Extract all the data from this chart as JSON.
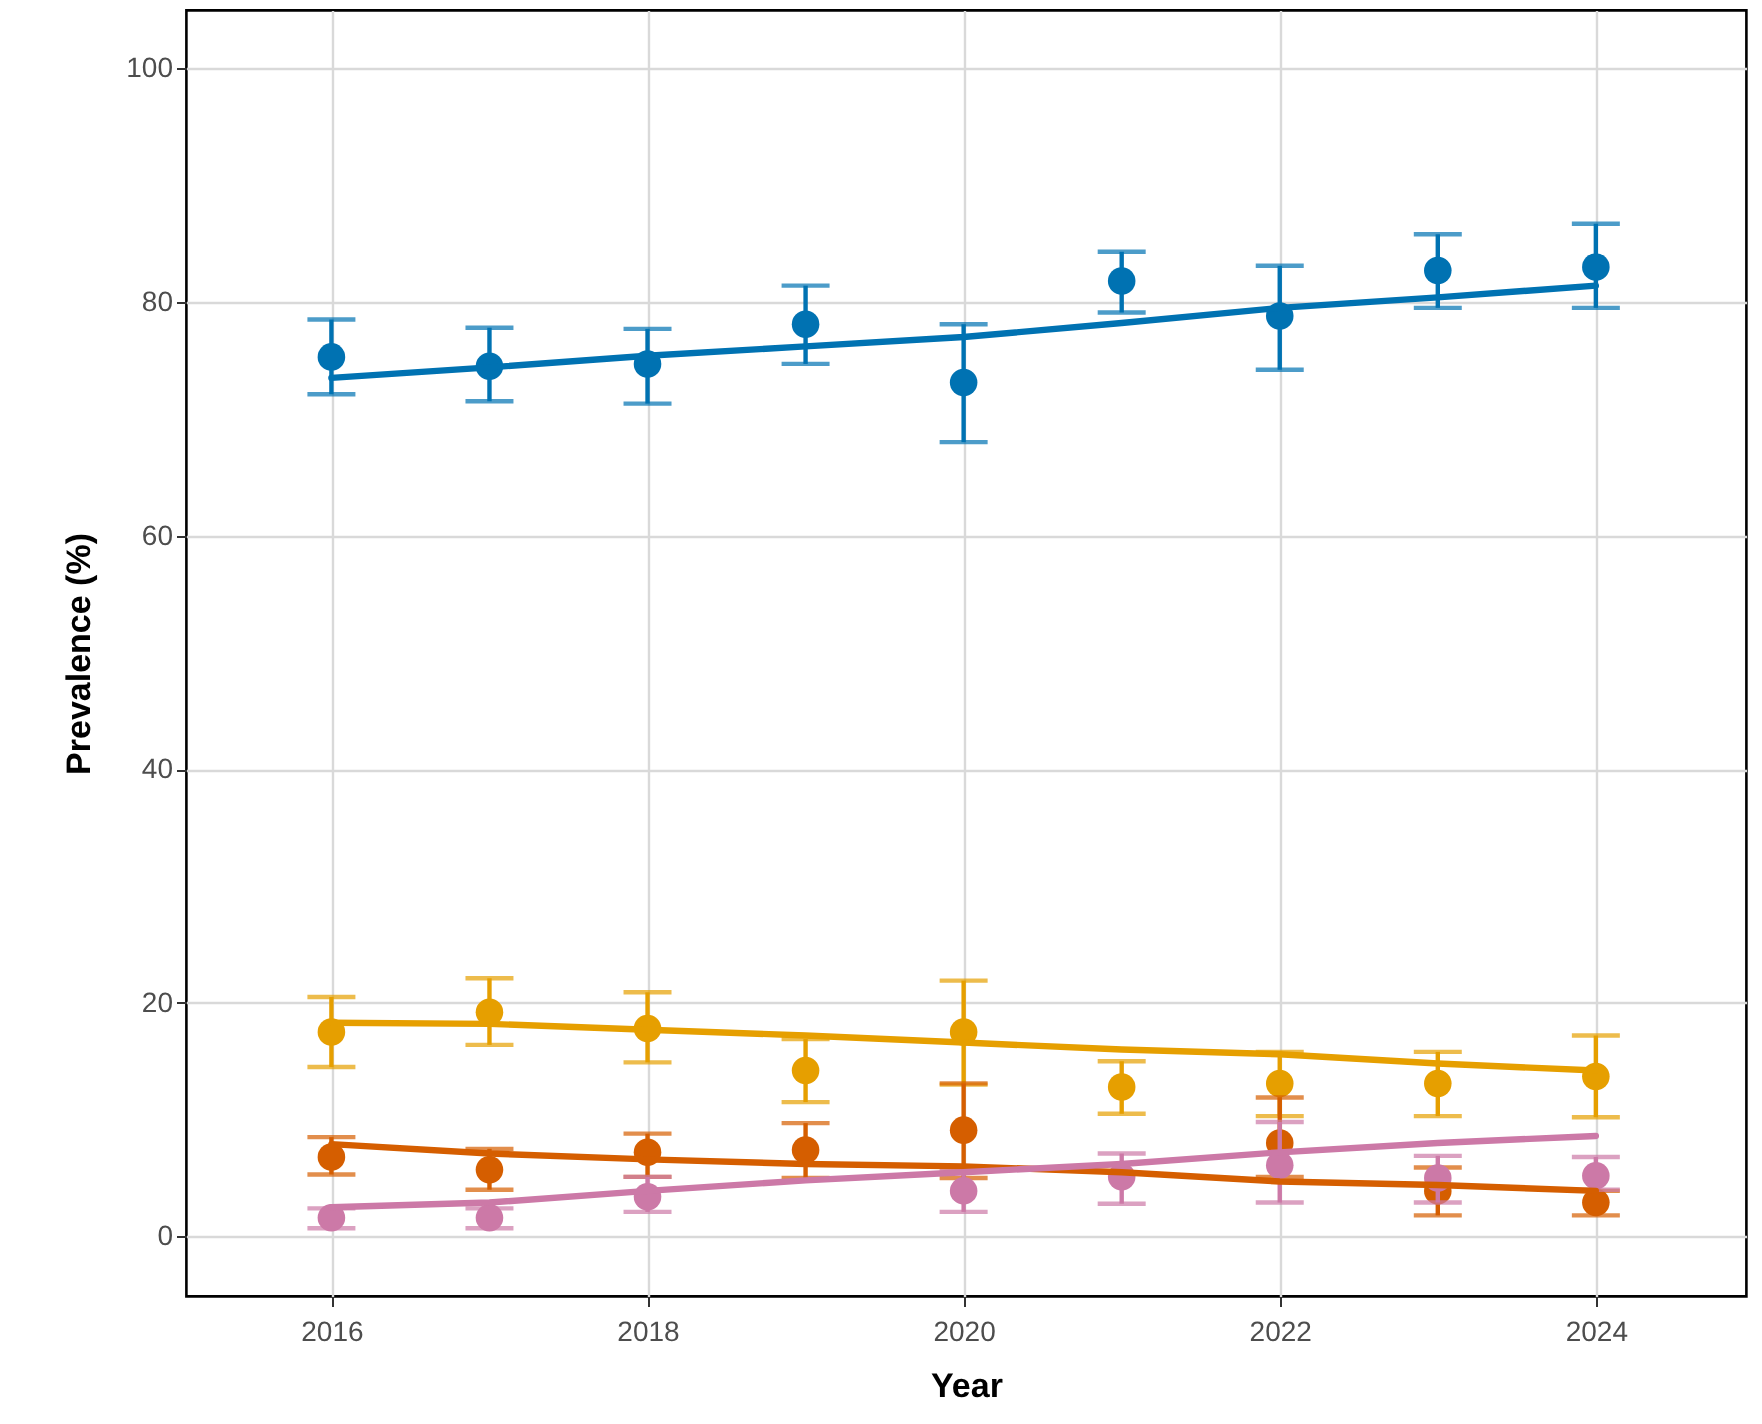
{
  "chart_data": {
    "type": "scatter",
    "xlabel": "Year",
    "ylabel": "Prevalence (%)",
    "x": [
      2016,
      2017,
      2018,
      2019,
      2020,
      2021,
      2022,
      2023,
      2024
    ],
    "xlim": [
      2015.08,
      2024.95
    ],
    "ylim": [
      -5.1,
      105
    ],
    "xticks": [
      2016,
      2018,
      2020,
      2022,
      2024
    ],
    "yticks": [
      0,
      20,
      40,
      60,
      80,
      100
    ],
    "grid": true,
    "series": [
      {
        "marker": "circle",
        "color": "#0072b2",
        "values": [
          75.3,
          74.5,
          74.7,
          78.1,
          73.1,
          81.8,
          78.8,
          82.7,
          83.0
        ],
        "errors": [
          [
            72.1,
            78.5
          ],
          [
            71.5,
            77.8
          ],
          [
            71.3,
            77.7
          ],
          [
            74.7,
            81.4
          ],
          [
            68.0,
            78.1
          ],
          [
            79.1,
            84.3
          ],
          [
            74.2,
            83.1
          ],
          [
            79.5,
            85.8
          ],
          [
            79.5,
            86.7
          ]
        ]
      },
      {
        "marker": "circle",
        "color": "#e69f00",
        "values": [
          17.5,
          19.2,
          17.8,
          14.2,
          17.5,
          12.8,
          13.1,
          13.1,
          13.7
        ],
        "errors": [
          [
            14.5,
            20.5
          ],
          [
            16.4,
            22.1
          ],
          [
            14.9,
            20.9
          ],
          [
            11.5,
            16.9
          ],
          [
            13.0,
            21.9
          ],
          [
            10.5,
            15.0
          ],
          [
            10.3,
            15.8
          ],
          [
            10.3,
            15.8
          ],
          [
            10.2,
            17.2
          ]
        ]
      },
      {
        "marker": "circle",
        "color": "#d55e00",
        "values": [
          6.8,
          5.7,
          7.2,
          7.4,
          9.1,
          null,
          8.0,
          3.9,
          2.9
        ],
        "errors": [
          [
            5.3,
            8.5
          ],
          [
            4.0,
            7.5
          ],
          [
            5.1,
            8.8
          ],
          [
            5.0,
            9.7
          ],
          [
            5.0,
            13.1
          ],
          null,
          [
            5.1,
            11.9
          ],
          [
            1.8,
            5.9
          ],
          [
            1.8,
            3.9
          ]
        ]
      },
      {
        "marker": "circle",
        "color": "#cc79a7",
        "values": [
          1.6,
          1.6,
          3.4,
          null,
          3.9,
          5.1,
          6.1,
          5.0,
          5.2
        ],
        "errors": [
          [
            0.7,
            2.4
          ],
          [
            0.7,
            2.4
          ],
          [
            2.1,
            5.1
          ],
          null,
          [
            2.1,
            5.7
          ],
          [
            2.8,
            7.1
          ],
          [
            2.9,
            9.8
          ],
          [
            2.9,
            6.9
          ],
          [
            4.0,
            6.8
          ]
        ]
      },
      {
        "type": "line",
        "marker": "none",
        "color": "#0072b2",
        "values": [
          73.5,
          74.4,
          75.4,
          76.2,
          77.0,
          78.2,
          79.5,
          80.4,
          81.4
        ]
      },
      {
        "type": "line",
        "marker": "none",
        "color": "#e69f00",
        "values": [
          18.3,
          18.2,
          17.7,
          17.2,
          16.6,
          16.0,
          15.6,
          14.8,
          14.2
        ]
      },
      {
        "type": "line",
        "marker": "none",
        "color": "#d55e00",
        "values": [
          7.9,
          7.1,
          6.6,
          6.2,
          6.0,
          5.5,
          4.7,
          4.4,
          3.9
        ]
      },
      {
        "type": "line",
        "marker": "none",
        "color": "#cc79a7",
        "values": [
          2.5,
          2.9,
          3.9,
          4.8,
          5.5,
          6.2,
          7.2,
          8.0,
          8.6
        ]
      }
    ]
  }
}
